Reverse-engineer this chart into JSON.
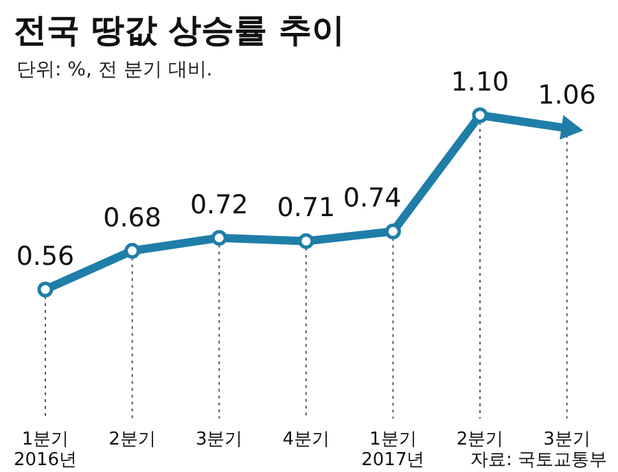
{
  "chart_data": {
    "type": "line",
    "title": "전국 땅값 상승률 추이",
    "subtitle": "단위: %, 전 분기 대비.",
    "categories": [
      "1분기",
      "2분기",
      "3분기",
      "4분기",
      "1분기",
      "2분기",
      "3분기"
    ],
    "series": [
      {
        "color": "#1f7ea8",
        "values": [
          0.56,
          0.68,
          0.72,
          0.71,
          0.74,
          1.1,
          1.06
        ],
        "value_labels": [
          "0.56",
          "0.68",
          "0.72",
          "0.71",
          "0.74",
          "1.10",
          "1.06"
        ]
      }
    ],
    "marker": "circle",
    "grid": "x",
    "annotations": [
      "2016년",
      "2017년",
      "자료: 국토교통부"
    ]
  }
}
